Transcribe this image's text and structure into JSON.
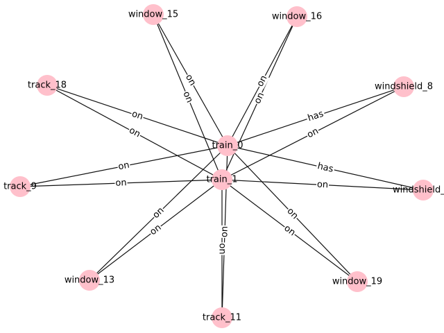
{
  "graph": {
    "node_color": "#ffc0cb",
    "edge_color": "#111111",
    "nodes": [
      {
        "id": "train_0",
        "label": "train_0"
      },
      {
        "id": "train_1",
        "label": "train_1"
      },
      {
        "id": "window_15",
        "label": "window_15"
      },
      {
        "id": "window_16",
        "label": "window_16"
      },
      {
        "id": "track_18",
        "label": "track_18"
      },
      {
        "id": "windshield_8",
        "label": "windshield_8"
      },
      {
        "id": "track_9",
        "label": "track_9"
      },
      {
        "id": "windshield",
        "label": "windshield_"
      },
      {
        "id": "window_13",
        "label": "window_13"
      },
      {
        "id": "window_19",
        "label": "window_19"
      },
      {
        "id": "track_11",
        "label": "track_11"
      }
    ],
    "edges": [
      {
        "source": "train_0",
        "target": "window_15",
        "label": "on"
      },
      {
        "source": "train_0",
        "target": "window_16",
        "label": "on"
      },
      {
        "source": "train_0",
        "target": "track_18",
        "label": "on"
      },
      {
        "source": "train_0",
        "target": "windshield_8",
        "label": "has"
      },
      {
        "source": "train_0",
        "target": "track_9",
        "label": "on"
      },
      {
        "source": "train_0",
        "target": "windshield",
        "label": "has"
      },
      {
        "source": "train_0",
        "target": "window_13",
        "label": "on"
      },
      {
        "source": "train_0",
        "target": "window_19",
        "label": "on"
      },
      {
        "source": "train_0",
        "target": "track_11",
        "label": "on"
      },
      {
        "source": "train_1",
        "target": "window_15",
        "label": "on"
      },
      {
        "source": "train_1",
        "target": "window_16",
        "label": "on"
      },
      {
        "source": "train_1",
        "target": "track_18",
        "label": "on"
      },
      {
        "source": "train_1",
        "target": "windshield_8",
        "label": "on"
      },
      {
        "source": "train_1",
        "target": "track_9",
        "label": "on"
      },
      {
        "source": "train_1",
        "target": "windshield",
        "label": "on"
      },
      {
        "source": "train_1",
        "target": "window_13",
        "label": "on"
      },
      {
        "source": "train_1",
        "target": "window_19",
        "label": "on"
      },
      {
        "source": "train_1",
        "target": "track_11",
        "label": "on"
      }
    ]
  }
}
